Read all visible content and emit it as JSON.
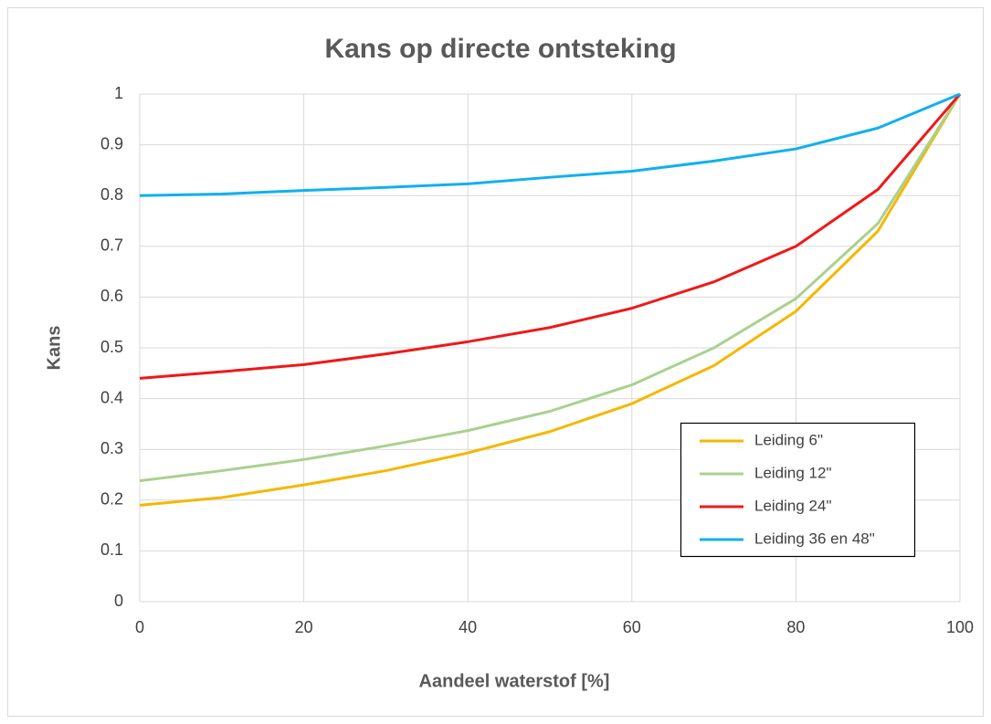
{
  "chart_data": {
    "type": "line",
    "title": "Kans op directe ontsteking",
    "xlabel": "Aandeel waterstof [%]",
    "ylabel": "Kans",
    "x": [
      0,
      10,
      20,
      30,
      40,
      50,
      60,
      70,
      80,
      90,
      100
    ],
    "series": [
      {
        "name": "Leiding 6\"",
        "color": "#f5b700",
        "values": [
          0.19,
          0.205,
          0.23,
          0.258,
          0.293,
          0.335,
          0.39,
          0.465,
          0.572,
          0.73,
          1.0
        ]
      },
      {
        "name": "Leiding 12\"",
        "color": "#a9d18e",
        "values": [
          0.238,
          0.258,
          0.28,
          0.307,
          0.337,
          0.375,
          0.427,
          0.5,
          0.597,
          0.745,
          1.0
        ]
      },
      {
        "name": "Leiding 24\"",
        "color": "#f01818",
        "values": [
          0.44,
          0.453,
          0.467,
          0.488,
          0.512,
          0.54,
          0.578,
          0.63,
          0.7,
          0.812,
          1.0
        ]
      },
      {
        "name": "Leiding 36 en 48\"",
        "color": "#10b0f0",
        "values": [
          0.8,
          0.803,
          0.81,
          0.816,
          0.823,
          0.836,
          0.848,
          0.868,
          0.892,
          0.933,
          1.0
        ]
      }
    ],
    "xlim": [
      0,
      100
    ],
    "xticks": [
      0,
      20,
      40,
      60,
      80,
      100
    ],
    "ylim": [
      0,
      1
    ],
    "yticks": [
      0,
      0.1,
      0.2,
      0.3,
      0.4,
      0.5,
      0.6,
      0.7,
      0.8,
      0.9,
      1
    ],
    "grid": true,
    "legend": "lower right"
  }
}
